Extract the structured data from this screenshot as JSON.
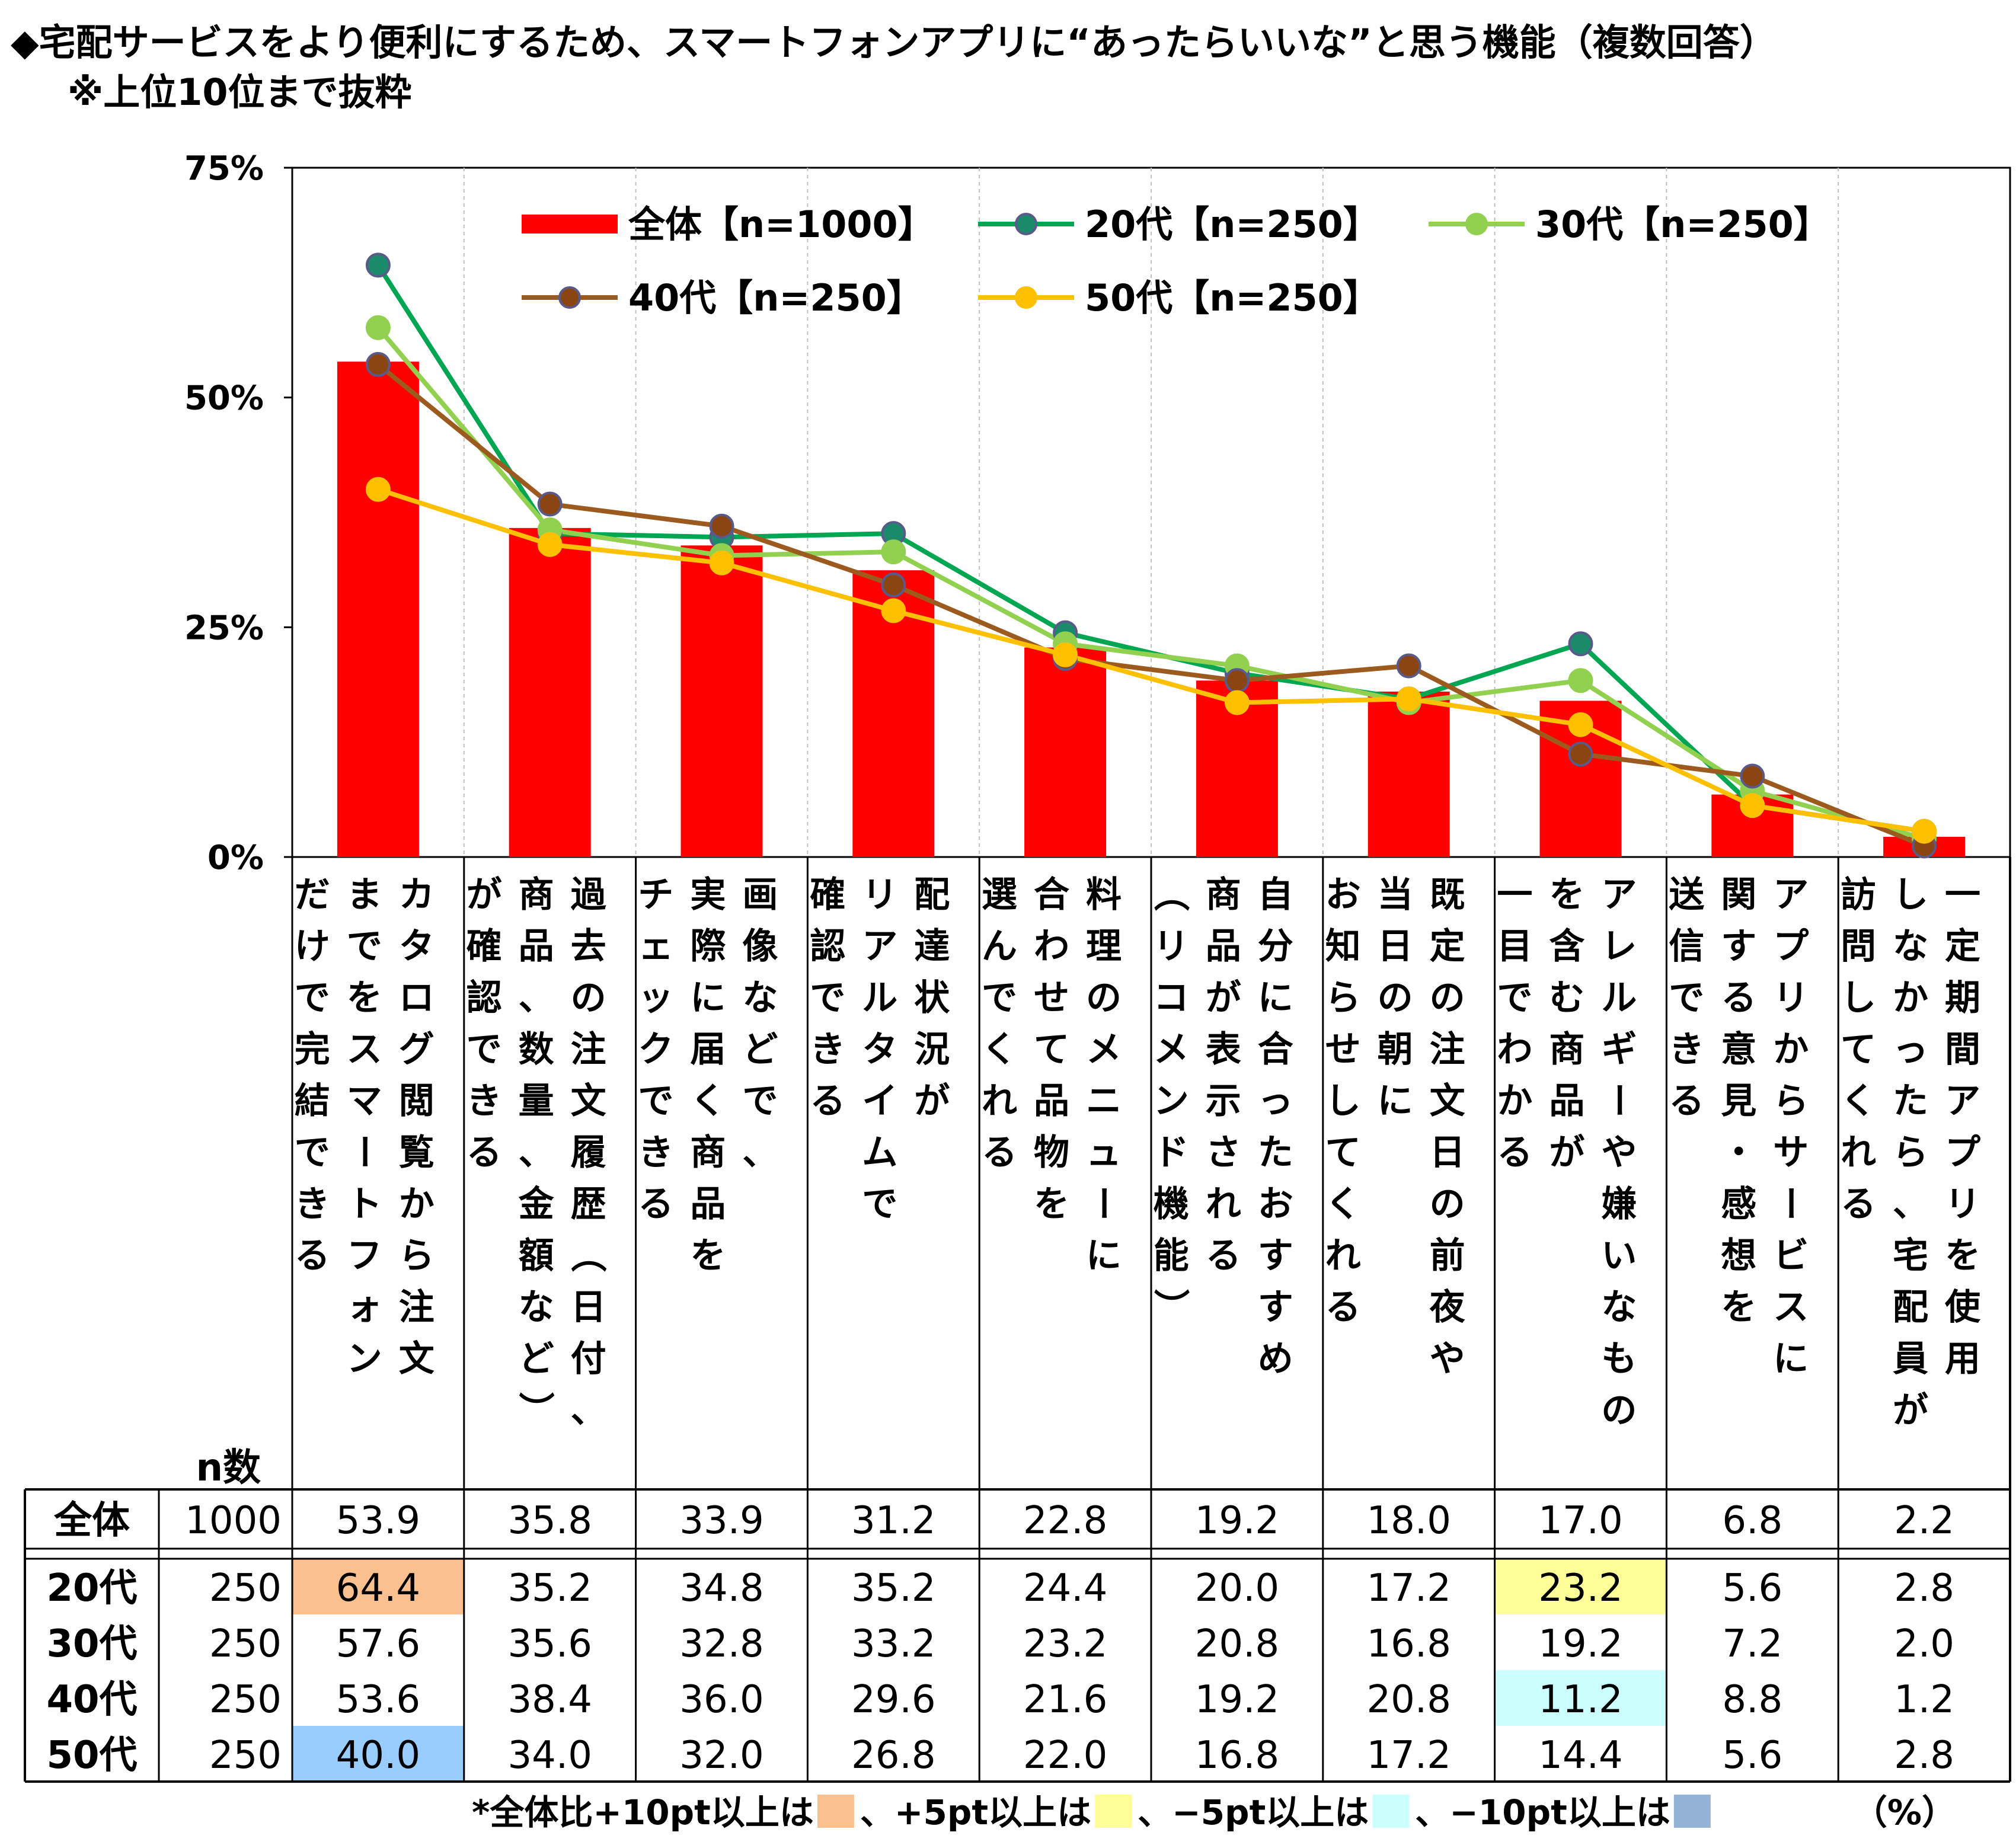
{
  "title": "◆宅配サービスをより便利にするため、スマートフォンアプリに“あったらいいな”と思う機能（複数回答）",
  "subtitle": "※上位10位まで抜粋",
  "chart_data": {
    "type": "bar",
    "ylim": [
      0,
      75
    ],
    "yticks": [
      "0%",
      "25%",
      "50%",
      "75%"
    ],
    "categories": [
      "カタログ閲覧から注文までをスマートフォンだけで完結できる",
      "過去の注文履歴（日付、商品、数量、金額など）が確認できる",
      "画像などで、実際に届く商品をチェックできる",
      "配達状況がリアルタイムで確認できる",
      "料理のメニューに合わせて品物を選んでくれる",
      "自分に合ったおすすめ商品が表示される（リコメンド機能）",
      "既定の注文日の前夜や当日の朝にお知らせしてくれる",
      "アレルギーや嫌いなものを含む商品が一目でわかる",
      "アプリからサービスに関する意見・感想を送信できる",
      "一定期間アプリを使用しなかったら、宅配員が訪問してくれる"
    ],
    "category_columns": [
      [
        "カタログ閲覧から注文",
        "までをスマートフォン",
        "だけで完結できる"
      ],
      [
        "過去の注文履歴（日付、",
        "商品、数量、金額など）",
        "が確認できる"
      ],
      [
        "画像などで、",
        "実際に届く商品を",
        "チェックできる"
      ],
      [
        "配達状況が",
        "リアルタイムで",
        "確認できる"
      ],
      [
        "料理のメニューに",
        "合わせて品物を",
        "選んでくれる"
      ],
      [
        "自分に合ったおすすめ",
        "商品が表示される",
        "（リコメンド機能）"
      ],
      [
        "既定の注文日の前夜や",
        "当日の朝に",
        "お知らせしてくれる"
      ],
      [
        "アレルギーや嫌いなもの",
        "を含む商品が",
        "一目でわかる"
      ],
      [
        "アプリからサービスに",
        "関する意見・感想を",
        "送信できる"
      ],
      [
        "一定期間アプリを使用",
        "しなかったら、宅配員が",
        "訪問してくれる"
      ]
    ],
    "series": [
      {
        "name": "全体【n=1000】",
        "kind": "bar",
        "color": "#FF0000",
        "values": [
          53.9,
          35.8,
          33.9,
          31.2,
          22.8,
          19.2,
          18.0,
          17.0,
          6.8,
          2.2
        ]
      },
      {
        "name": "20代【n=250】",
        "kind": "line",
        "color": "#00A651",
        "marker": "#1B8A6B",
        "values": [
          64.4,
          35.2,
          34.8,
          35.2,
          24.4,
          20.0,
          17.2,
          23.2,
          5.6,
          2.8
        ]
      },
      {
        "name": "30代【n=250】",
        "kind": "line",
        "color": "#92D050",
        "marker": "#92D050",
        "values": [
          57.6,
          35.6,
          32.8,
          33.2,
          23.2,
          20.8,
          16.8,
          19.2,
          7.2,
          2.0
        ]
      },
      {
        "name": "40代【n=250】",
        "kind": "line",
        "color": "#9C5A1E",
        "marker": "#8B4513",
        "values": [
          53.6,
          38.4,
          36.0,
          29.6,
          21.6,
          19.2,
          20.8,
          11.2,
          8.8,
          1.2
        ]
      },
      {
        "name": "50代【n=250】",
        "kind": "line",
        "color": "#FFC000",
        "marker": "#FFC000",
        "values": [
          40.0,
          34.0,
          32.0,
          26.8,
          22.0,
          16.8,
          17.2,
          14.4,
          5.6,
          2.8
        ]
      }
    ],
    "legend_position": "top"
  },
  "table": {
    "n_header": "n数",
    "rows": [
      {
        "label": "全体",
        "n": "1000",
        "values": [
          "53.9",
          "35.8",
          "33.9",
          "31.2",
          "22.8",
          "19.2",
          "18.0",
          "17.0",
          "6.8",
          "2.2"
        ],
        "highlights": [
          null,
          null,
          null,
          null,
          null,
          null,
          null,
          null,
          null,
          null
        ]
      },
      {
        "label": "20代",
        "n": "250",
        "values": [
          "64.4",
          "35.2",
          "34.8",
          "35.2",
          "24.4",
          "20.0",
          "17.2",
          "23.2",
          "5.6",
          "2.8"
        ],
        "highlights": [
          "plus10",
          null,
          null,
          null,
          null,
          null,
          null,
          "plus5",
          null,
          null
        ]
      },
      {
        "label": "30代",
        "n": "250",
        "values": [
          "57.6",
          "35.6",
          "32.8",
          "33.2",
          "23.2",
          "20.8",
          "16.8",
          "19.2",
          "7.2",
          "2.0"
        ],
        "highlights": [
          null,
          null,
          null,
          null,
          null,
          null,
          null,
          null,
          null,
          null
        ]
      },
      {
        "label": "40代",
        "n": "250",
        "values": [
          "53.6",
          "38.4",
          "36.0",
          "29.6",
          "21.6",
          "19.2",
          "20.8",
          "11.2",
          "8.8",
          "1.2"
        ],
        "highlights": [
          null,
          null,
          null,
          null,
          null,
          null,
          null,
          "minus5",
          null,
          null
        ]
      },
      {
        "label": "50代",
        "n": "250",
        "values": [
          "40.0",
          "34.0",
          "32.0",
          "26.8",
          "22.0",
          "16.8",
          "17.2",
          "14.4",
          "5.6",
          "2.8"
        ],
        "highlights": [
          "minus10",
          null,
          null,
          null,
          null,
          null,
          null,
          null,
          null,
          null
        ]
      }
    ],
    "highlight_colors": {
      "plus10": "#FAC090",
      "plus5": "#FFFF99",
      "minus5": "#CCFFFF",
      "minus10": "#99CCFF"
    }
  },
  "footnote": {
    "parts": [
      "*全体比+10pt以上は",
      "、+5pt以上は",
      "、−5pt以上は",
      "、−10pt以上は"
    ],
    "swatches": [
      "#FAC090",
      "#FFFF99",
      "#CCFFFF",
      "#95B3D7"
    ],
    "unit": "（%）"
  }
}
